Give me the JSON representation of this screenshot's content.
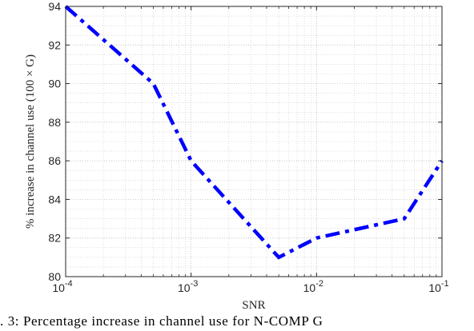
{
  "chart_data": {
    "type": "line",
    "title": "",
    "xlabel": "SNR",
    "ylabel": "% increase in channel use (100 × G)",
    "x_scale": "log",
    "xlim": [
      0.0001,
      0.1
    ],
    "ylim": [
      80,
      94
    ],
    "x_ticks": [
      {
        "value": 0.0001,
        "base": "10",
        "exp": "-4"
      },
      {
        "value": 0.001,
        "base": "10",
        "exp": "-3"
      },
      {
        "value": 0.01,
        "base": "10",
        "exp": "-2"
      },
      {
        "value": 0.1,
        "base": "10",
        "exp": "-1"
      }
    ],
    "y_ticks": [
      "80",
      "82",
      "84",
      "86",
      "88",
      "90",
      "92",
      "94"
    ],
    "grid": true,
    "minor_grid": true,
    "series": [
      {
        "color": "#0000ff",
        "line_style": "dash-dot",
        "x": [
          0.0001,
          0.0005,
          0.001,
          0.005,
          0.01,
          0.05,
          0.1
        ],
        "y": [
          94,
          90,
          86,
          81,
          82,
          83,
          86
        ]
      }
    ]
  },
  "caption": ". 3: Percentage increase in channel use for N-COMP G"
}
